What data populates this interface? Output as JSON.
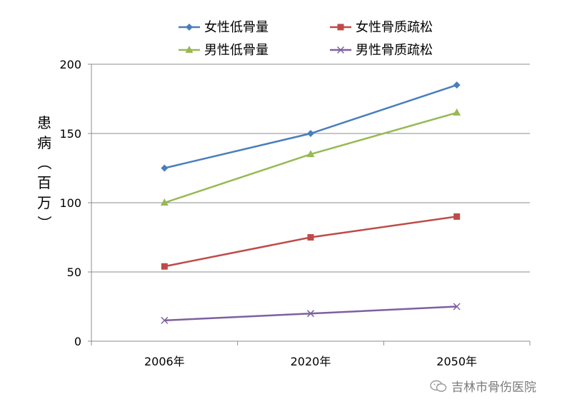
{
  "chart_data": {
    "type": "line",
    "categories": [
      "2006年",
      "2020年",
      "2050年"
    ],
    "ylabel": "患病（百万）",
    "ylim": [
      0,
      200
    ],
    "yticks": [
      0,
      50,
      100,
      150,
      200
    ],
    "grid": true,
    "legend_position": "top",
    "series": [
      {
        "name": "女性低骨量",
        "values": [
          125,
          150,
          185
        ],
        "color": "#4a7ebb",
        "marker": "diamond"
      },
      {
        "name": "女性骨质疏松",
        "values": [
          54,
          75,
          90
        ],
        "color": "#be4b48",
        "marker": "square"
      },
      {
        "name": "男性低骨量",
        "values": [
          100,
          135,
          165
        ],
        "color": "#98b954",
        "marker": "triangle"
      },
      {
        "name": "男性骨质疏松",
        "values": [
          15,
          20,
          25
        ],
        "color": "#7d60a0",
        "marker": "x"
      }
    ]
  },
  "watermark": {
    "text": "吉林市骨伤医院",
    "icon": "wechat-icon"
  }
}
